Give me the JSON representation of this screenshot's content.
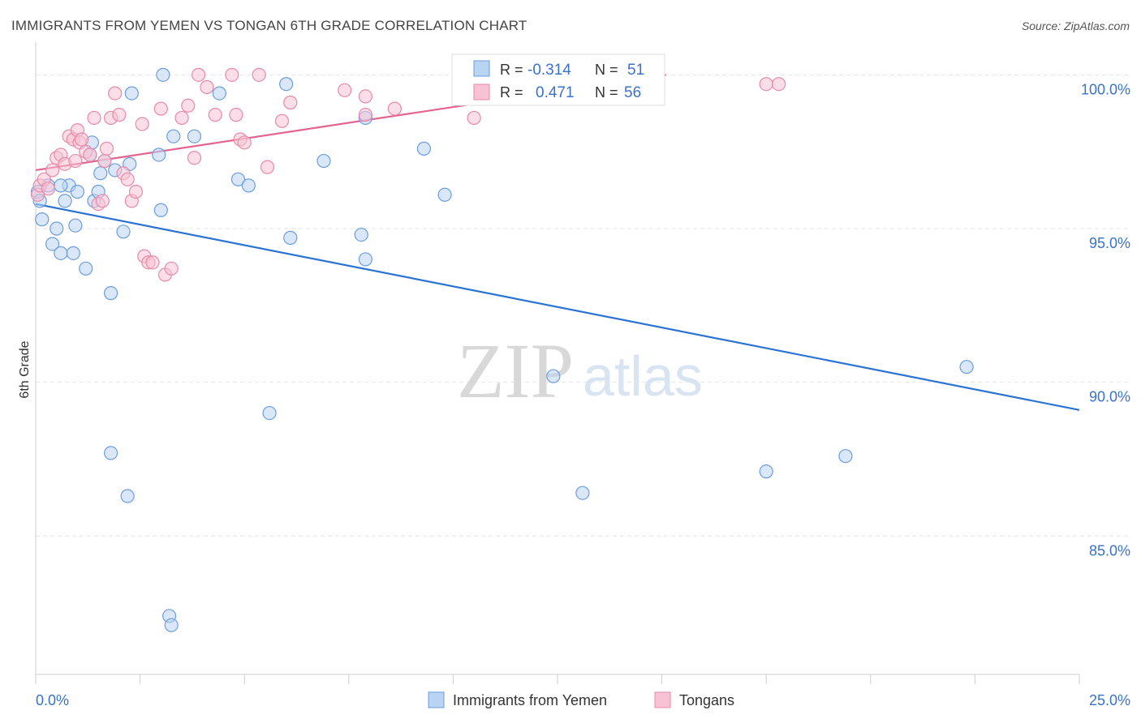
{
  "title": "IMMIGRANTS FROM YEMEN VS TONGAN 6TH GRADE CORRELATION CHART",
  "source": "Source: ZipAtlas.com",
  "watermark": {
    "zip": "ZIP",
    "atlas": "atlas"
  },
  "legend_box": {
    "rows": [
      {
        "r_label": "R =",
        "r_value": "-0.314",
        "n_label": "N =",
        "n_value": "51"
      },
      {
        "r_label": "R =",
        "r_value": "0.471",
        "n_label": "N =",
        "n_value": "56"
      }
    ]
  },
  "colors": {
    "blue_fill": "#b9d3f3",
    "blue_stroke": "#6b9de0",
    "blue_line": "#2a72d4",
    "pink_fill": "#f7c3d4",
    "pink_stroke": "#e88aa8",
    "pink_line": "#e4648f",
    "value_text": "#3a72c9",
    "grid": "#e4e4e4"
  },
  "chart_data": {
    "type": "scatter",
    "title": "IMMIGRANTS FROM YEMEN VS TONGAN 6TH GRADE CORRELATION CHART",
    "ylabel": "6th Grade",
    "xlabel": "",
    "xlim": [
      0,
      25
    ],
    "ylim": [
      80.5,
      100.8
    ],
    "x_tick_labels": [
      {
        "value": 0,
        "label": "0.0%"
      },
      {
        "value": 25,
        "label": "25.0%"
      }
    ],
    "y_tick_labels": [
      {
        "value": 100,
        "label": "100.0%"
      },
      {
        "value": 95,
        "label": "95.0%"
      },
      {
        "value": 90,
        "label": "90.0%"
      },
      {
        "value": 85,
        "label": "85.0%"
      }
    ],
    "grid": true,
    "legend_position": "bottom",
    "series": [
      {
        "name": "Immigrants from Yemen",
        "color": "#b9d3f3",
        "r": "-0.314",
        "n": "51",
        "trend": {
          "x": [
            0,
            25
          ],
          "y": [
            95.8,
            89.1
          ]
        },
        "points": [
          [
            0.05,
            96.2
          ],
          [
            0.1,
            95.9
          ],
          [
            0.15,
            95.3
          ],
          [
            0.3,
            96.4
          ],
          [
            0.4,
            94.5
          ],
          [
            0.5,
            95.0
          ],
          [
            0.6,
            94.2
          ],
          [
            0.7,
            95.9
          ],
          [
            0.8,
            96.4
          ],
          [
            0.9,
            94.2
          ],
          [
            0.95,
            95.1
          ],
          [
            1.0,
            96.2
          ],
          [
            1.2,
            93.7
          ],
          [
            1.35,
            97.8
          ],
          [
            1.4,
            95.9
          ],
          [
            1.5,
            96.2
          ],
          [
            1.55,
            96.8
          ],
          [
            1.65,
            97.2
          ],
          [
            1.8,
            92.9
          ],
          [
            1.9,
            96.9
          ],
          [
            2.1,
            94.9
          ],
          [
            2.25,
            97.1
          ],
          [
            2.3,
            99.4
          ],
          [
            2.95,
            97.4
          ],
          [
            3.0,
            95.6
          ],
          [
            3.05,
            100.0
          ],
          [
            3.3,
            98.0
          ],
          [
            3.8,
            98.0
          ],
          [
            4.4,
            99.4
          ],
          [
            4.85,
            96.6
          ],
          [
            5.1,
            96.4
          ],
          [
            6.0,
            99.7
          ],
          [
            6.1,
            94.7
          ],
          [
            6.9,
            97.2
          ],
          [
            7.8,
            94.8
          ],
          [
            7.9,
            98.6
          ],
          [
            7.9,
            94.0
          ],
          [
            9.3,
            97.6
          ],
          [
            9.8,
            96.1
          ],
          [
            1.8,
            87.7
          ],
          [
            2.2,
            86.3
          ],
          [
            5.6,
            89.0
          ],
          [
            3.2,
            82.4
          ],
          [
            3.25,
            82.1
          ],
          [
            12.4,
            90.2
          ],
          [
            13.1,
            86.4
          ],
          [
            17.5,
            87.1
          ],
          [
            19.4,
            87.6
          ],
          [
            22.3,
            90.5
          ],
          [
            0.6,
            96.4
          ],
          [
            1.3,
            97.4
          ]
        ]
      },
      {
        "name": "Tongans",
        "color": "#f7c3d4",
        "r": "0.471",
        "n": "56",
        "trend": {
          "x": [
            0,
            15.1
          ],
          "y": [
            96.9,
            100.0
          ]
        },
        "points": [
          [
            0.05,
            96.1
          ],
          [
            0.1,
            96.4
          ],
          [
            0.2,
            96.6
          ],
          [
            0.3,
            96.3
          ],
          [
            0.4,
            96.9
          ],
          [
            0.5,
            97.3
          ],
          [
            0.6,
            97.4
          ],
          [
            0.7,
            97.1
          ],
          [
            0.8,
            98.0
          ],
          [
            0.9,
            97.9
          ],
          [
            0.95,
            97.2
          ],
          [
            1.0,
            98.2
          ],
          [
            1.05,
            97.8
          ],
          [
            1.1,
            97.9
          ],
          [
            1.2,
            97.5
          ],
          [
            1.3,
            97.4
          ],
          [
            1.4,
            98.6
          ],
          [
            1.5,
            95.8
          ],
          [
            1.6,
            95.9
          ],
          [
            1.65,
            97.2
          ],
          [
            1.7,
            97.6
          ],
          [
            1.8,
            98.6
          ],
          [
            1.9,
            99.4
          ],
          [
            2.0,
            98.7
          ],
          [
            2.1,
            96.8
          ],
          [
            2.2,
            96.6
          ],
          [
            2.3,
            95.9
          ],
          [
            2.4,
            96.2
          ],
          [
            2.55,
            98.4
          ],
          [
            2.6,
            94.1
          ],
          [
            2.7,
            93.9
          ],
          [
            2.8,
            93.9
          ],
          [
            3.0,
            98.9
          ],
          [
            3.1,
            93.5
          ],
          [
            3.25,
            93.7
          ],
          [
            3.5,
            98.6
          ],
          [
            3.65,
            99.0
          ],
          [
            3.8,
            97.3
          ],
          [
            3.9,
            100.0
          ],
          [
            4.1,
            99.6
          ],
          [
            4.3,
            98.7
          ],
          [
            4.7,
            100.0
          ],
          [
            4.8,
            98.7
          ],
          [
            4.9,
            97.9
          ],
          [
            5.35,
            100.0
          ],
          [
            5.55,
            97.0
          ],
          [
            5.9,
            98.5
          ],
          [
            6.1,
            99.1
          ],
          [
            7.4,
            99.5
          ],
          [
            7.9,
            98.7
          ],
          [
            7.9,
            99.3
          ],
          [
            8.6,
            98.9
          ],
          [
            10.5,
            98.6
          ],
          [
            17.5,
            99.7
          ],
          [
            17.8,
            99.7
          ],
          [
            5.0,
            97.8
          ]
        ]
      }
    ]
  }
}
